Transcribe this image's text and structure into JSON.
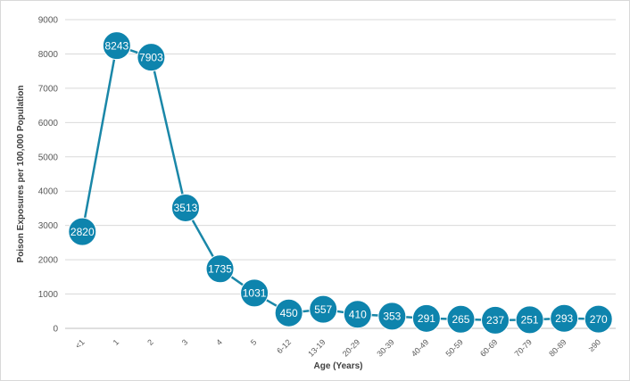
{
  "chart_data": {
    "type": "line",
    "xlabel": "Age (Years)",
    "ylabel": "Poison Exposures per 100,000 Population",
    "ylim": [
      0,
      9000
    ],
    "yticks": [
      0,
      1000,
      2000,
      3000,
      4000,
      5000,
      6000,
      7000,
      8000,
      9000
    ],
    "grid": true,
    "colors": {
      "line": "#1a87a8",
      "marker": "#0e84ad",
      "grid": "#d9d9d9",
      "axis": "#bfbfbf"
    },
    "categories": [
      "<1",
      "1",
      "2",
      "3",
      "4",
      "5",
      "6-12",
      "13-19",
      "20-29",
      "30-39",
      "40-49",
      "50-59",
      "60-69",
      "70-79",
      "80-89",
      "≥90"
    ],
    "series": [
      {
        "values": [
          2820,
          8243,
          7903,
          3513,
          1735,
          1031,
          450,
          557,
          410,
          353,
          291,
          265,
          237,
          251,
          293,
          270
        ]
      }
    ]
  }
}
